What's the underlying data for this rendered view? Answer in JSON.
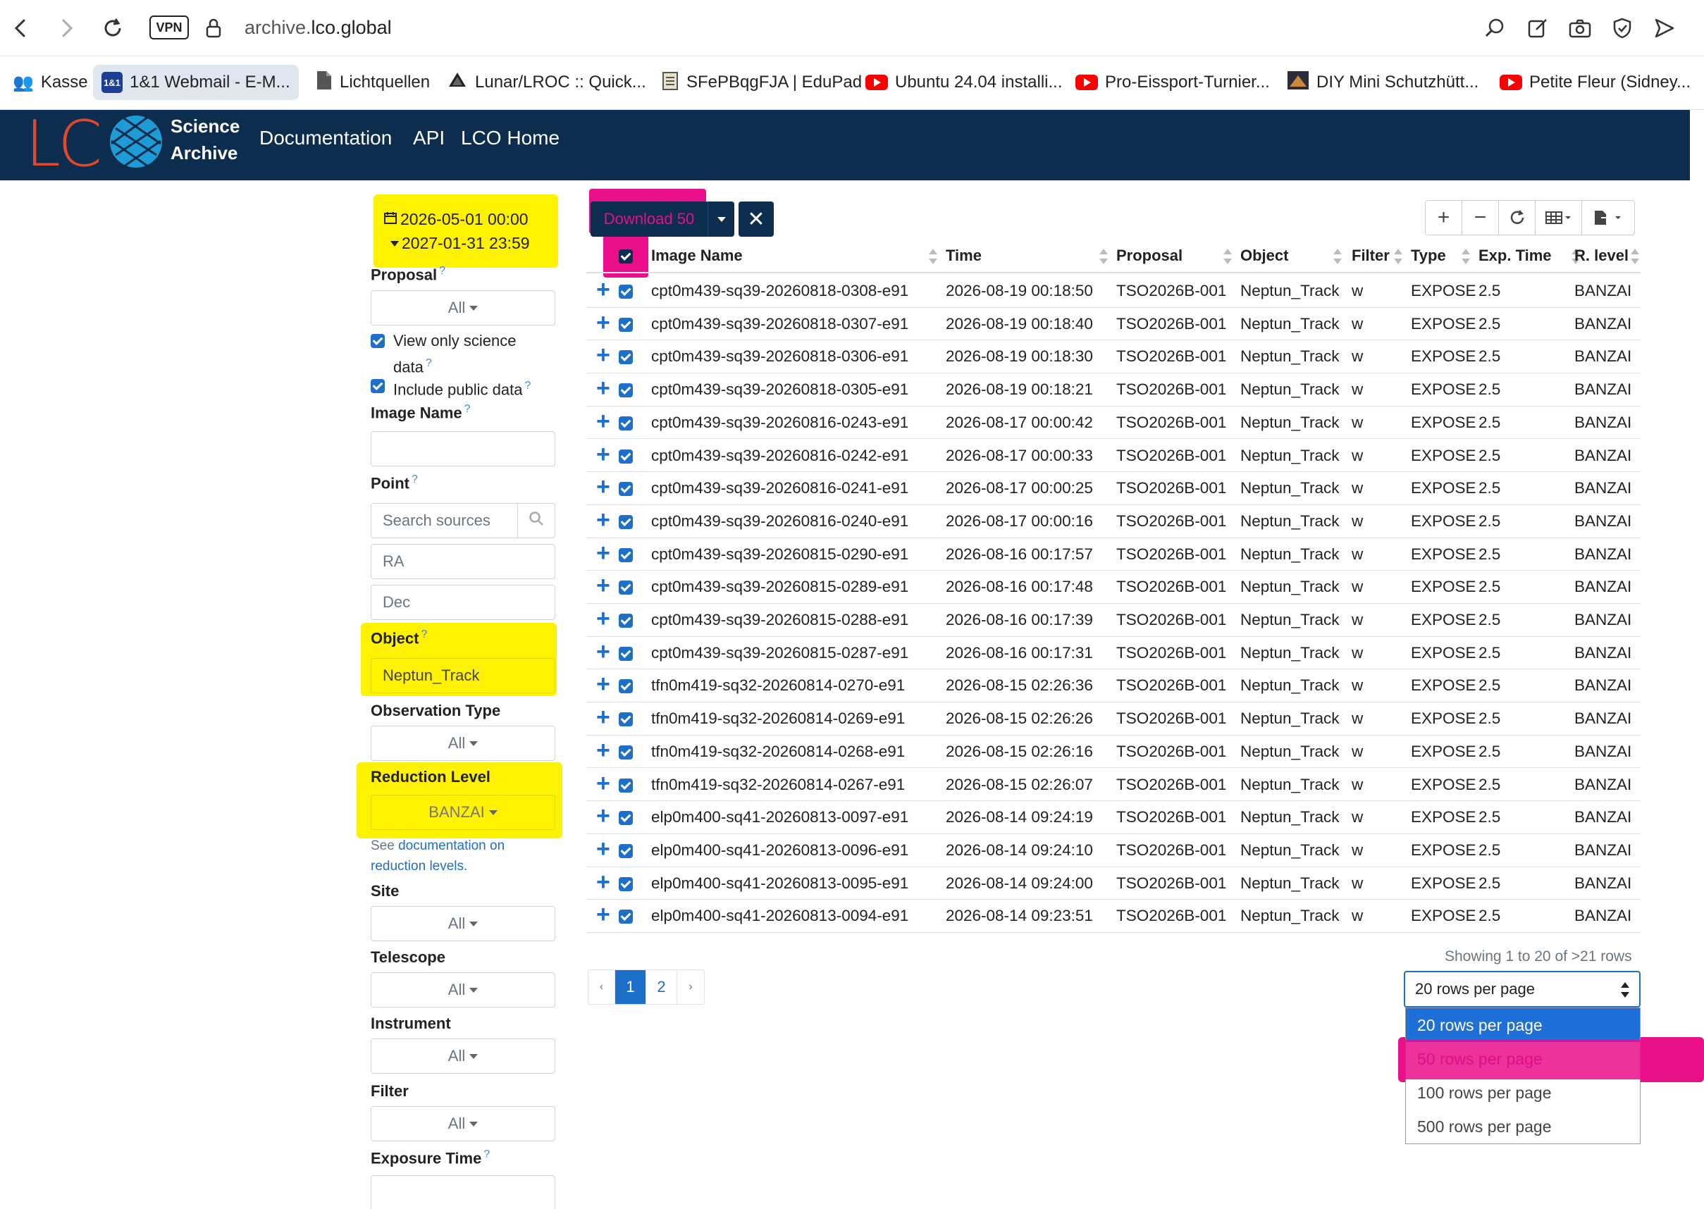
{
  "browser": {
    "vpn_label": "VPN",
    "url_domain": "archive.",
    "url_host": "lco.global",
    "bookmarks": [
      {
        "label": "Kasse",
        "icon": "people-icon"
      },
      {
        "label": "1&1 Webmail - E-M...",
        "icon": "1and1-icon",
        "badge": "1&1"
      },
      {
        "label": "Lichtquellen",
        "icon": "document-icon"
      },
      {
        "label": "Lunar/LROC :: Quick...",
        "icon": "lroc-icon"
      },
      {
        "label": "SFePBqgFJA | EduPad",
        "icon": "notepad-icon"
      },
      {
        "label": "Ubuntu 24.04 installi...",
        "icon": "youtube-icon"
      },
      {
        "label": "Pro-Eissport-Turnier...",
        "icon": "youtube-icon"
      },
      {
        "label": "DIY Mini Schutzhütt...",
        "icon": "thumbnail-icon"
      },
      {
        "label": "Petite Fleur (Sidney...",
        "icon": "youtube-icon"
      }
    ]
  },
  "header": {
    "logo": "LC",
    "logo_line1": "Science",
    "logo_line2": "Archive",
    "nav": [
      "Documentation",
      "API",
      "LCO Home"
    ]
  },
  "filters": {
    "date_start": "2026-05-01 00:00",
    "date_end": "2027-01-31 23:59",
    "proposal_label": "Proposal",
    "proposal_value": "All",
    "science_only_label": "View only science",
    "science_only_label2": "data",
    "public_label": "Include public data",
    "image_name_label": "Image Name",
    "point_label": "Point",
    "search_sources_placeholder": "Search sources",
    "ra_placeholder": "RA",
    "dec_placeholder": "Dec",
    "object_label": "Object",
    "object_value": "Neptun_Track",
    "obs_type_label": "Observation Type",
    "obs_type_value": "All",
    "reduction_label": "Reduction Level",
    "reduction_value": "BANZAI",
    "reduction_note_prefix": "See ",
    "reduction_note_link": "documentation on",
    "reduction_note_link2": "reduction levels.",
    "site_label": "Site",
    "site_value": "All",
    "telescope_label": "Telescope",
    "telescope_value": "All",
    "instrument_label": "Instrument",
    "instrument_value": "All",
    "filter_label": "Filter",
    "filter_value": "All",
    "exposure_label": "Exposure Time",
    "help_mark": "?"
  },
  "toolbar": {
    "download_label": "Download 50",
    "clear_label": "✕"
  },
  "table": {
    "columns": [
      "Image Name",
      "Time",
      "Proposal",
      "Object",
      "Filter",
      "Type",
      "Exp. Time",
      "R. level"
    ],
    "rows": [
      [
        "cpt0m439-sq39-20260818-0308-e91",
        "2026-08-19 00:18:50",
        "TSO2026B-001",
        "Neptun_Track",
        "w",
        "EXPOSE",
        "2.5",
        "BANZAI"
      ],
      [
        "cpt0m439-sq39-20260818-0307-e91",
        "2026-08-19 00:18:40",
        "TSO2026B-001",
        "Neptun_Track",
        "w",
        "EXPOSE",
        "2.5",
        "BANZAI"
      ],
      [
        "cpt0m439-sq39-20260818-0306-e91",
        "2026-08-19 00:18:30",
        "TSO2026B-001",
        "Neptun_Track",
        "w",
        "EXPOSE",
        "2.5",
        "BANZAI"
      ],
      [
        "cpt0m439-sq39-20260818-0305-e91",
        "2026-08-19 00:18:21",
        "TSO2026B-001",
        "Neptun_Track",
        "w",
        "EXPOSE",
        "2.5",
        "BANZAI"
      ],
      [
        "cpt0m439-sq39-20260816-0243-e91",
        "2026-08-17 00:00:42",
        "TSO2026B-001",
        "Neptun_Track",
        "w",
        "EXPOSE",
        "2.5",
        "BANZAI"
      ],
      [
        "cpt0m439-sq39-20260816-0242-e91",
        "2026-08-17 00:00:33",
        "TSO2026B-001",
        "Neptun_Track",
        "w",
        "EXPOSE",
        "2.5",
        "BANZAI"
      ],
      [
        "cpt0m439-sq39-20260816-0241-e91",
        "2026-08-17 00:00:25",
        "TSO2026B-001",
        "Neptun_Track",
        "w",
        "EXPOSE",
        "2.5",
        "BANZAI"
      ],
      [
        "cpt0m439-sq39-20260816-0240-e91",
        "2026-08-17 00:00:16",
        "TSO2026B-001",
        "Neptun_Track",
        "w",
        "EXPOSE",
        "2.5",
        "BANZAI"
      ],
      [
        "cpt0m439-sq39-20260815-0290-e91",
        "2026-08-16 00:17:57",
        "TSO2026B-001",
        "Neptun_Track",
        "w",
        "EXPOSE",
        "2.5",
        "BANZAI"
      ],
      [
        "cpt0m439-sq39-20260815-0289-e91",
        "2026-08-16 00:17:48",
        "TSO2026B-001",
        "Neptun_Track",
        "w",
        "EXPOSE",
        "2.5",
        "BANZAI"
      ],
      [
        "cpt0m439-sq39-20260815-0288-e91",
        "2026-08-16 00:17:39",
        "TSO2026B-001",
        "Neptun_Track",
        "w",
        "EXPOSE",
        "2.5",
        "BANZAI"
      ],
      [
        "cpt0m439-sq39-20260815-0287-e91",
        "2026-08-16 00:17:31",
        "TSO2026B-001",
        "Neptun_Track",
        "w",
        "EXPOSE",
        "2.5",
        "BANZAI"
      ],
      [
        "tfn0m419-sq32-20260814-0270-e91",
        "2026-08-15 02:26:36",
        "TSO2026B-001",
        "Neptun_Track",
        "w",
        "EXPOSE",
        "2.5",
        "BANZAI"
      ],
      [
        "tfn0m419-sq32-20260814-0269-e91",
        "2026-08-15 02:26:26",
        "TSO2026B-001",
        "Neptun_Track",
        "w",
        "EXPOSE",
        "2.5",
        "BANZAI"
      ],
      [
        "tfn0m419-sq32-20260814-0268-e91",
        "2026-08-15 02:26:16",
        "TSO2026B-001",
        "Neptun_Track",
        "w",
        "EXPOSE",
        "2.5",
        "BANZAI"
      ],
      [
        "tfn0m419-sq32-20260814-0267-e91",
        "2026-08-15 02:26:07",
        "TSO2026B-001",
        "Neptun_Track",
        "w",
        "EXPOSE",
        "2.5",
        "BANZAI"
      ],
      [
        "elp0m400-sq41-20260813-0097-e91",
        "2026-08-14 09:24:19",
        "TSO2026B-001",
        "Neptun_Track",
        "w",
        "EXPOSE",
        "2.5",
        "BANZAI"
      ],
      [
        "elp0m400-sq41-20260813-0096-e91",
        "2026-08-14 09:24:10",
        "TSO2026B-001",
        "Neptun_Track",
        "w",
        "EXPOSE",
        "2.5",
        "BANZAI"
      ],
      [
        "elp0m400-sq41-20260813-0095-e91",
        "2026-08-14 09:24:00",
        "TSO2026B-001",
        "Neptun_Track",
        "w",
        "EXPOSE",
        "2.5",
        "BANZAI"
      ],
      [
        "elp0m400-sq41-20260813-0094-e91",
        "2026-08-14 09:23:51",
        "TSO2026B-001",
        "Neptun_Track",
        "w",
        "EXPOSE",
        "2.5",
        "BANZAI"
      ]
    ]
  },
  "pagination": {
    "prev": "‹",
    "pages": [
      "1",
      "2"
    ],
    "next": "›",
    "current": "1",
    "showing_text": "Showing 1 to 20 of >21 rows",
    "rows_per_page_value": "20 rows per page",
    "rows_per_page_options": [
      "20 rows per page",
      "50 rows per page",
      "100 rows per page",
      "500 rows per page"
    ]
  },
  "colors": {
    "header_bg": "#0c2d4e",
    "accent": "#1e6fc9",
    "highlight_yellow": "#fff200",
    "highlight_pink": "#ea0e8b",
    "logo_red": "#e0472b"
  }
}
